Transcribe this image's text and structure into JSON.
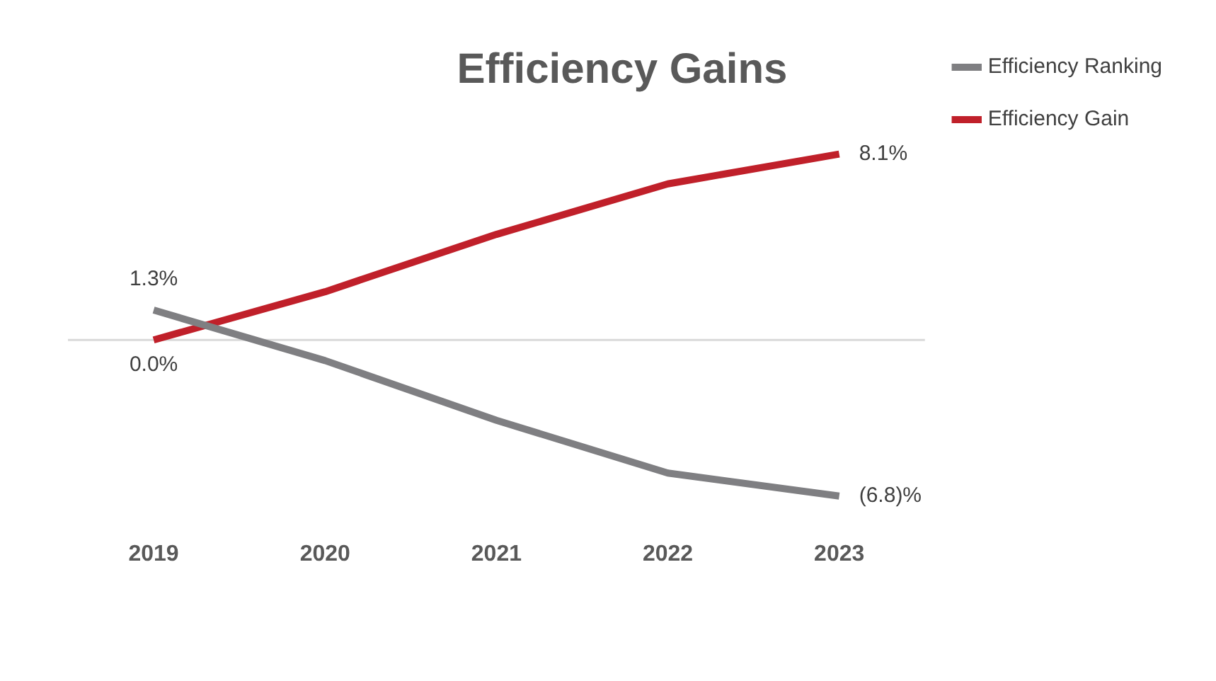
{
  "chart_data": {
    "type": "line",
    "title": "Efficiency Gains",
    "categories": [
      "2019",
      "2020",
      "2021",
      "2022",
      "2023"
    ],
    "series": [
      {
        "name": "Efficiency Ranking",
        "color": "#7f7f82",
        "values": [
          1.3,
          -0.9,
          -3.5,
          -5.8,
          -6.8
        ],
        "value_labels": [
          "1.3%",
          null,
          null,
          null,
          "(6.8)%"
        ]
      },
      {
        "name": "Efficiency Gain",
        "color": "#c0202a",
        "values": [
          0.0,
          2.1,
          4.6,
          6.8,
          8.1
        ],
        "value_labels": [
          "0.0%",
          null,
          null,
          null,
          "8.1%"
        ]
      }
    ],
    "tick_labels": "x",
    "grid": false,
    "legend": "top right",
    "marker": "none",
    "line_style": "solid",
    "ref_lines": [
      {
        "axis": "y",
        "value": 0,
        "color": "#d9d9d9"
      }
    ]
  }
}
